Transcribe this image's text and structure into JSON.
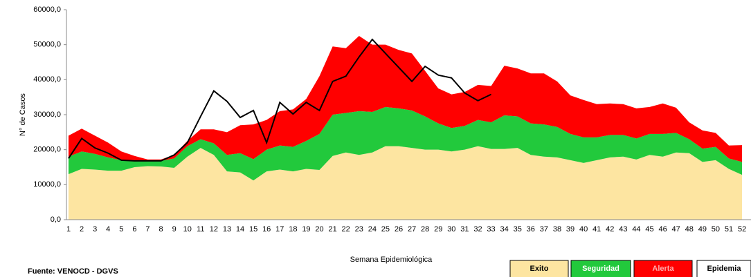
{
  "chart_data": {
    "type": "area",
    "y_label": "N° de Casos",
    "x_label": "Semana Epidemiológica",
    "source": "Fuente: VENOCD - DGVS",
    "stacked": true,
    "grid": false,
    "legend": "bottom-right",
    "categories": [
      "1",
      "2",
      "3",
      "4",
      "5",
      "6",
      "7",
      "8",
      "9",
      "10",
      "11",
      "12",
      "13",
      "14",
      "15",
      "16",
      "17",
      "18",
      "19",
      "20",
      "21",
      "22",
      "23",
      "24",
      "25",
      "26",
      "27",
      "28",
      "29",
      "30",
      "31",
      "32",
      "33",
      "34",
      "35",
      "36",
      "37",
      "38",
      "39",
      "40",
      "41",
      "42",
      "43",
      "44",
      "45",
      "46",
      "47",
      "48",
      "49",
      "50",
      "51",
      "52"
    ],
    "ylim": [
      0,
      60000
    ],
    "yticks": [
      {
        "value": 0,
        "label": "0,0"
      },
      {
        "value": 10000,
        "label": "10000,0"
      },
      {
        "value": 20000,
        "label": "20000,0"
      },
      {
        "value": 30000,
        "label": "30000,0"
      },
      {
        "value": 40000,
        "label": "40000,0"
      },
      {
        "value": 50000,
        "label": "50000,0"
      },
      {
        "value": 60000,
        "label": "60000,0"
      }
    ],
    "series": [
      {
        "name": "Exito",
        "type": "area",
        "color": "#fde5a1",
        "values": [
          13000,
          14500,
          14300,
          14000,
          14000,
          15000,
          15300,
          15200,
          14800,
          18000,
          20500,
          18500,
          13800,
          13500,
          11200,
          13800,
          14300,
          13800,
          14500,
          14200,
          18200,
          19200,
          18500,
          19200,
          21000,
          21000,
          20500,
          20000,
          20000,
          19500,
          20000,
          21000,
          20200,
          20200,
          20500,
          18500,
          18000,
          17800,
          17000,
          16200,
          17000,
          17800,
          18000,
          17200,
          18500,
          18000,
          19200,
          19000,
          16500,
          17000,
          14500,
          12800
        ]
      },
      {
        "name": "Seguridad",
        "type": "area",
        "color": "#22c93c",
        "values": [
          5000,
          5000,
          4500,
          3800,
          3000,
          2000,
          1500,
          1600,
          2700,
          3000,
          2500,
          3300,
          4700,
          5500,
          6100,
          6200,
          6900,
          7000,
          8000,
          10300,
          11800,
          11300,
          12500,
          11600,
          11200,
          10800,
          10700,
          9500,
          7500,
          6700,
          6800,
          7500,
          7600,
          9600,
          9000,
          9000,
          9200,
          8700,
          7500,
          7300,
          6500,
          6400,
          6200,
          6000,
          6000,
          6500,
          5600,
          4000,
          3800,
          3800,
          3000,
          3700
        ]
      },
      {
        "name": "Alerta",
        "type": "area",
        "color": "#ff0000",
        "values": [
          6000,
          6500,
          5200,
          4200,
          2500,
          1200,
          400,
          400,
          1000,
          1500,
          2800,
          4000,
          6500,
          8000,
          9900,
          8500,
          9800,
          10700,
          12000,
          16500,
          19500,
          18500,
          21500,
          19200,
          17800,
          16700,
          16300,
          13000,
          10000,
          9600,
          9700,
          10000,
          10400,
          14200,
          13700,
          14300,
          14600,
          13000,
          11000,
          10700,
          9500,
          9000,
          8800,
          8600,
          7700,
          8700,
          7200,
          4800,
          5200,
          4000,
          3700,
          4800
        ]
      },
      {
        "name": "Epidemia",
        "type": "line",
        "color": "#000000",
        "values": [
          17500,
          23200,
          20500,
          19000,
          17000,
          16800,
          16800,
          16800,
          18500,
          22000,
          29500,
          36800,
          33800,
          29200,
          31200,
          22000,
          33500,
          30200,
          33500,
          31200,
          39500,
          41000,
          46500,
          51500,
          47500,
          43500,
          39500,
          43800,
          41300,
          40500,
          36200,
          34000,
          35800,
          null,
          null,
          null,
          null,
          null,
          null,
          null,
          null,
          null,
          null,
          null,
          null,
          null,
          null,
          null,
          null,
          null,
          null,
          null
        ]
      }
    ]
  }
}
